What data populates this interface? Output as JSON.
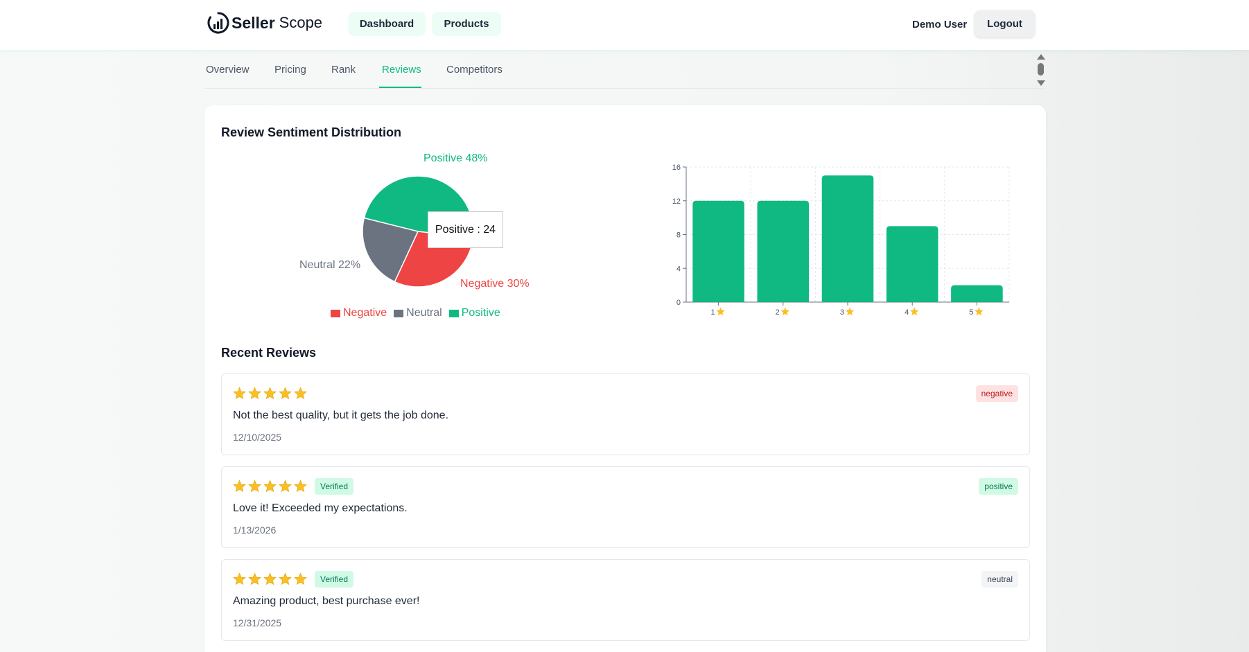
{
  "header": {
    "logo_bold": "Seller",
    "logo_light": "Scope",
    "nav": [
      {
        "label": "Dashboard"
      },
      {
        "label": "Products"
      }
    ],
    "user_name": "Demo User",
    "logout_label": "Logout"
  },
  "tabs": [
    {
      "label": "Overview"
    },
    {
      "label": "Pricing"
    },
    {
      "label": "Rank"
    },
    {
      "label": "Reviews",
      "active": true
    },
    {
      "label": "Competitors"
    }
  ],
  "sentiment": {
    "title": "Review Sentiment Distribution",
    "tooltip": "Positive : 24",
    "labels": {
      "positive": "Positive 48%",
      "neutral": "Neutral 22%",
      "negative": "Negative 30%"
    },
    "legend": [
      {
        "label": "Negative",
        "color": "#ef4444"
      },
      {
        "label": "Neutral",
        "color": "#6b7280"
      },
      {
        "label": "Positive",
        "color": "#10b981"
      }
    ]
  },
  "chart_data": [
    {
      "type": "pie",
      "slices": [
        {
          "name": "Negative",
          "percent": 30,
          "color": "#ef4444"
        },
        {
          "name": "Neutral",
          "percent": 22,
          "color": "#6b7280"
        },
        {
          "name": "Positive",
          "percent": 48,
          "value": 24,
          "color": "#10b981"
        }
      ]
    },
    {
      "type": "bar",
      "categories": [
        "1",
        "2",
        "3",
        "4",
        "5"
      ],
      "category_icon": "star-icon",
      "values": [
        12,
        12,
        15,
        9,
        2
      ],
      "ylim": [
        0,
        16
      ],
      "yticks": [
        0,
        4,
        8,
        12,
        16
      ],
      "grid": true,
      "color": "#10b981"
    }
  ],
  "recent_reviews": {
    "title": "Recent Reviews",
    "verified_label": "Verified",
    "items": [
      {
        "rating": 5,
        "verified": false,
        "text": "Not the best quality, but it gets the job done.",
        "date": "12/10/2025",
        "sentiment": "negative"
      },
      {
        "rating": 5,
        "verified": true,
        "text": "Love it! Exceeded my expectations.",
        "date": "1/13/2026",
        "sentiment": "positive"
      },
      {
        "rating": 5,
        "verified": true,
        "text": "Amazing product, best purchase ever!",
        "date": "12/31/2025",
        "sentiment": "neutral"
      }
    ]
  },
  "colors": {
    "accent": "#10b981",
    "star": "#fbbf24",
    "negative_bg": "#fee2e2",
    "negative_fg": "#b91c1c",
    "positive_bg": "#d1fae5",
    "positive_fg": "#047857",
    "neutral_bg": "#f3f4f6",
    "neutral_fg": "#374151"
  }
}
